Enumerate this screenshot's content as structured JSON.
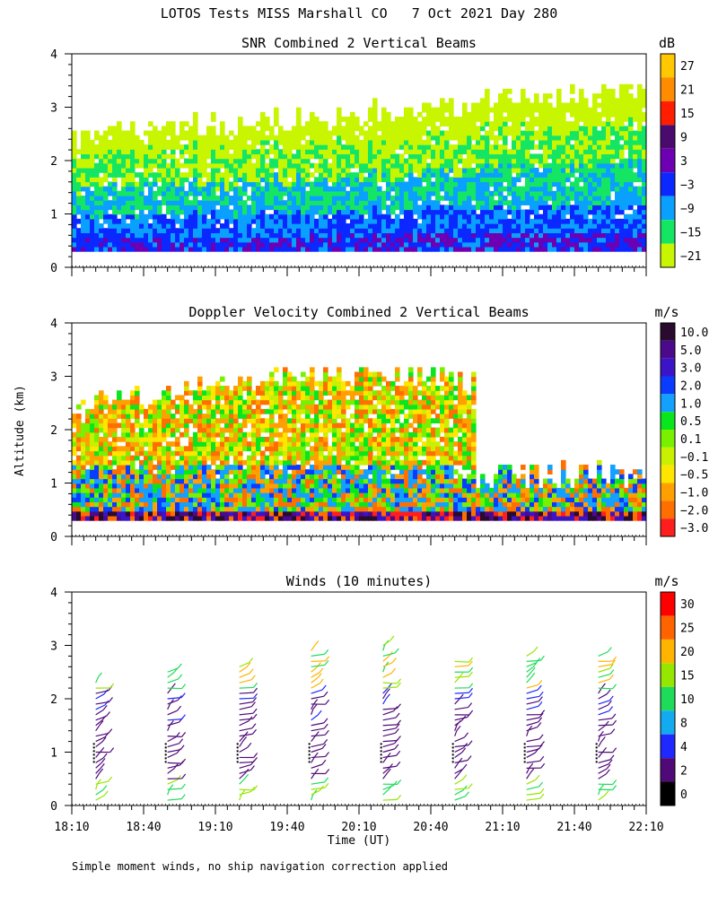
{
  "page": {
    "title": "LOTOS Tests MISS Marshall CO   7 Oct 2021 Day 280",
    "ylabel": "Altitude (km)",
    "xlabel": "Time (UT)",
    "footnote": "Simple moment winds, no ship navigation correction applied"
  },
  "chart_data": [
    {
      "type": "heatmap",
      "title": "SNR Combined 2 Vertical Beams",
      "unit": "dB",
      "ylim": [
        0,
        4
      ],
      "yticks": [
        "0",
        "1",
        "2",
        "3",
        "4"
      ],
      "xlim": [
        "18:10",
        "22:10"
      ],
      "colorbar": {
        "labels": [
          "27",
          "21",
          "15",
          "9",
          "3",
          "−3",
          "−9",
          "−15",
          "−21"
        ],
        "colors": [
          "#ffc800",
          "#ff8c00",
          "#ff1e00",
          "#4b0a6e",
          "#6e00b4",
          "#0a28ff",
          "#0aa0ff",
          "#14e664",
          "#c8f500"
        ]
      },
      "description_values": {
        "signal_top_km_start": 2.4,
        "signal_top_km_end": 3.3,
        "lowest_gate_km": 0.25
      }
    },
    {
      "type": "heatmap",
      "title": "Doppler Velocity Combined 2 Vertical Beams",
      "unit": "m/s",
      "ylim": [
        0,
        4
      ],
      "yticks": [
        "0",
        "1",
        "2",
        "3",
        "4"
      ],
      "xlim": [
        "18:10",
        "22:10"
      ],
      "colorbar": {
        "labels": [
          "10.0",
          "5.0",
          "3.0",
          "2.0",
          "1.0",
          "0.5",
          "0.1",
          "−0.1",
          "−0.5",
          "−1.0",
          "−2.0",
          "−3.0"
        ],
        "colors": [
          "#2a0a2e",
          "#4b0a8c",
          "#3c14c8",
          "#0a3cff",
          "#14a0ff",
          "#0ae61e",
          "#78f000",
          "#c8f000",
          "#ffe600",
          "#ffa000",
          "#ff6e00",
          "#ff1e1e"
        ]
      }
    },
    {
      "type": "scatter",
      "title": "Winds (10 minutes)",
      "unit": "m/s",
      "ylim": [
        0,
        4
      ],
      "yticks": [
        "0",
        "1",
        "2",
        "3",
        "4"
      ],
      "xticks": [
        "18:10",
        "18:40",
        "19:10",
        "19:40",
        "20:10",
        "20:40",
        "21:10",
        "21:40",
        "22:10"
      ],
      "colorbar": {
        "labels": [
          "30",
          "25",
          "20",
          "15",
          "10",
          "8",
          "4",
          "2",
          "0"
        ],
        "colors": [
          "#ff0000",
          "#ff6400",
          "#ffb400",
          "#96e600",
          "#1edc5a",
          "#14aaf0",
          "#1e28ff",
          "#500a78",
          "#000000"
        ]
      },
      "profile_times": [
        "18:20",
        "18:50",
        "19:20",
        "19:50",
        "20:20",
        "20:50",
        "21:20",
        "21:50"
      ],
      "profile_tops_km": [
        2.35,
        2.55,
        2.65,
        2.95,
        3.05,
        2.8,
        2.9,
        2.85
      ]
    }
  ]
}
